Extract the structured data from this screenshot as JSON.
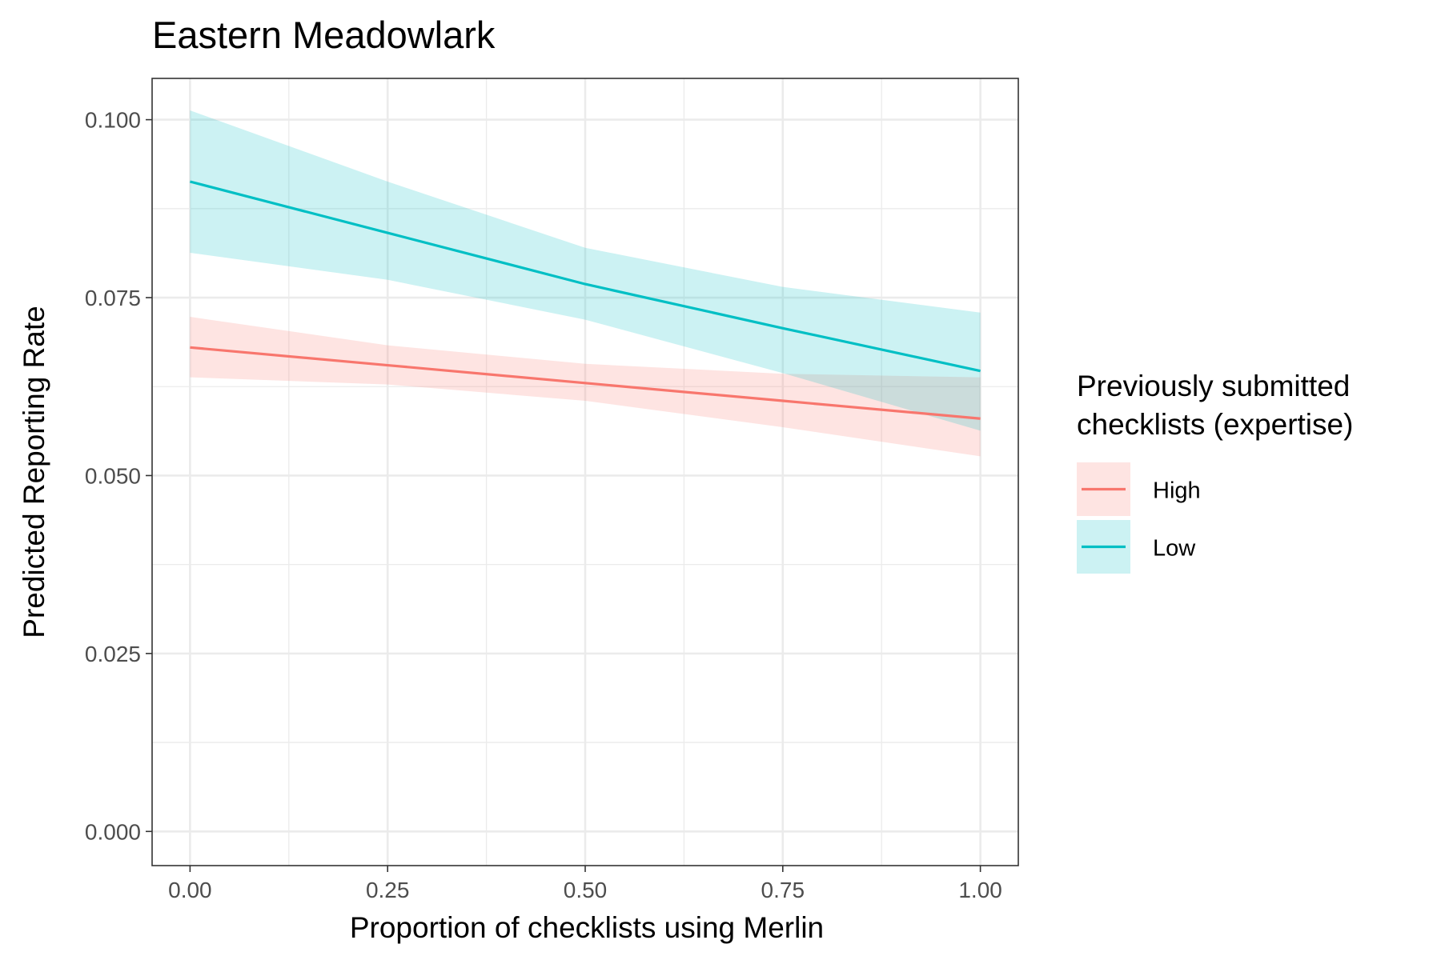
{
  "chart_data": {
    "type": "line",
    "title": "Eastern Meadowlark",
    "xlabel": "Proportion of checklists using Merlin",
    "ylabel": "Predicted Reporting Rate",
    "xlim": [
      -0.048,
      1.048
    ],
    "ylim": [
      -0.0048,
      0.1058
    ],
    "x_ticks": [
      0.0,
      0.25,
      0.5,
      0.75,
      1.0
    ],
    "x_tick_labels": [
      "0.00",
      "0.25",
      "0.50",
      "0.75",
      "1.00"
    ],
    "y_ticks": [
      0.0,
      0.025,
      0.05,
      0.075,
      0.1
    ],
    "y_tick_labels": [
      "0.000",
      "0.025",
      "0.050",
      "0.075",
      "0.100"
    ],
    "grid": true,
    "legend": {
      "title_lines": [
        "Previously submitted",
        "checklists (expertise)"
      ],
      "placement": "right"
    },
    "series": [
      {
        "name": "High",
        "color": "#F8766D",
        "x": [
          0.0,
          0.25,
          0.5,
          0.75,
          1.0
        ],
        "y": [
          0.068,
          0.0655,
          0.063,
          0.0605,
          0.058
        ],
        "lower": [
          0.0638,
          0.0628,
          0.0605,
          0.0568,
          0.0527
        ],
        "upper": [
          0.0723,
          0.0683,
          0.0657,
          0.0643,
          0.0638
        ]
      },
      {
        "name": "Low",
        "color": "#00BFC4",
        "x": [
          0.0,
          0.25,
          0.5,
          0.75,
          1.0
        ],
        "y": [
          0.0913,
          0.0841,
          0.0769,
          0.0707,
          0.0647
        ],
        "lower": [
          0.0813,
          0.0775,
          0.0719,
          0.0644,
          0.0563
        ],
        "upper": [
          0.1013,
          0.0913,
          0.082,
          0.0765,
          0.0729
        ]
      }
    ]
  }
}
